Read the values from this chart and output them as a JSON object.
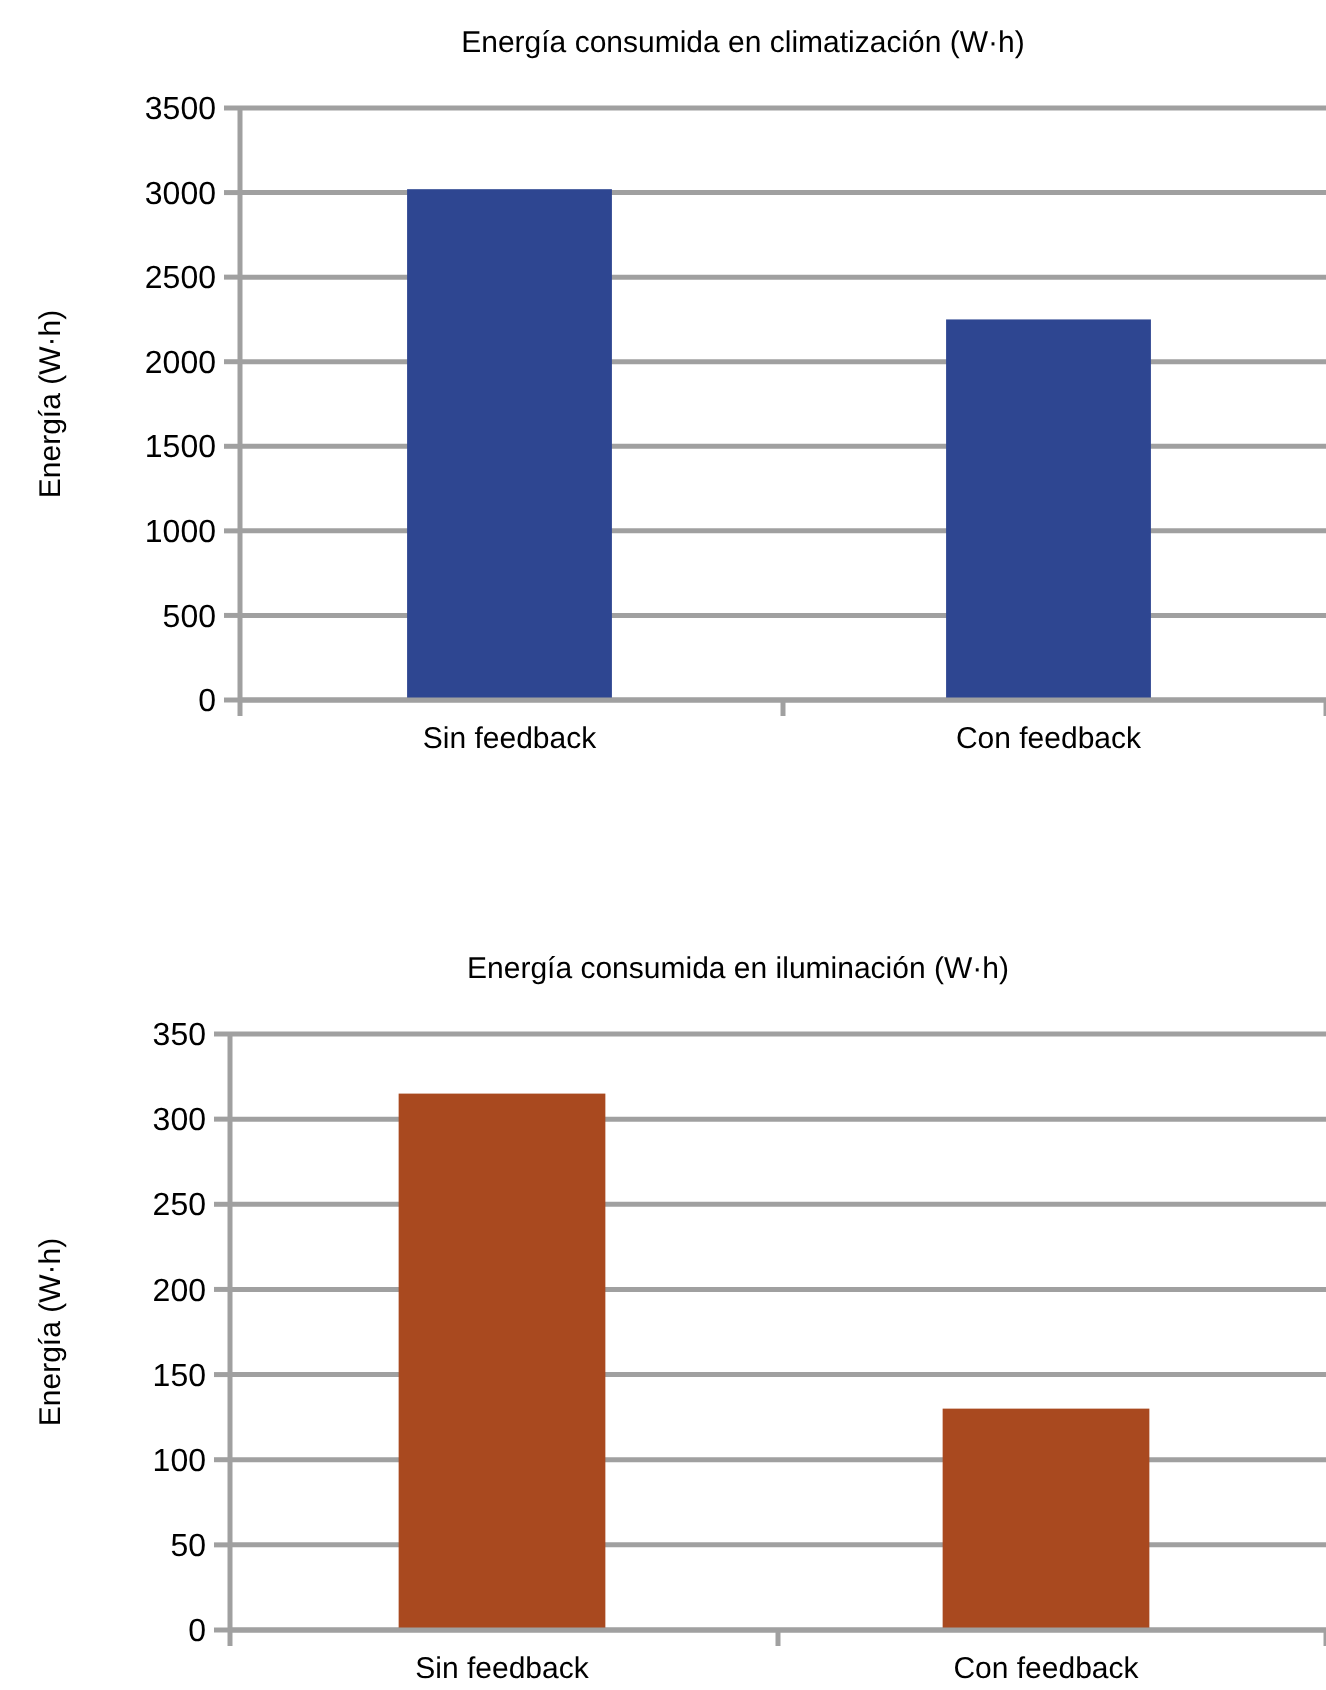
{
  "chart_data": [
    {
      "type": "bar",
      "title": "Energía consumida en climatización (W·h)",
      "ylabel": "Energía (W·h)",
      "categories": [
        "Sin feedback",
        "Con feedback"
      ],
      "values": [
        3020,
        2250
      ],
      "color": "#2e4691",
      "ylim": [
        0,
        3500
      ],
      "yticks": [
        0,
        500,
        1000,
        1500,
        2000,
        2500,
        3000,
        3500
      ],
      "grid": "y"
    },
    {
      "type": "bar",
      "title": "Energía consumida en iluminación (W·h)",
      "ylabel": "Energía (W·h)",
      "categories": [
        "Sin feedback",
        "Con feedback"
      ],
      "values": [
        315,
        130
      ],
      "color": "#a9491f",
      "ylim": [
        0,
        350
      ],
      "yticks": [
        0,
        50,
        100,
        150,
        200,
        250,
        300,
        350
      ],
      "grid": "y"
    }
  ]
}
